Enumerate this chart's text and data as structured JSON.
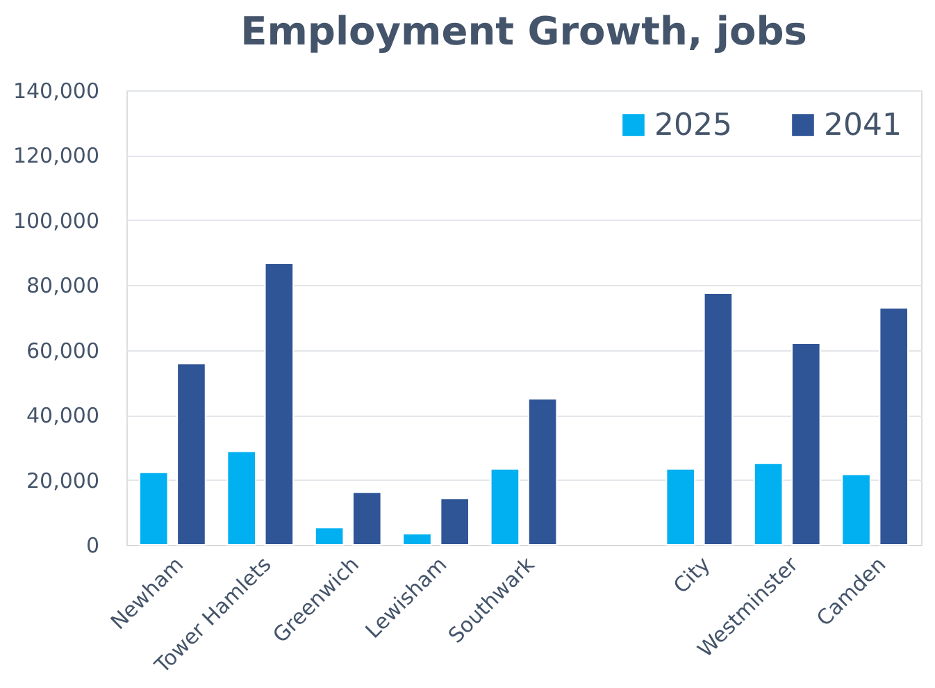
{
  "chart_data": {
    "type": "bar",
    "title": "Employment Growth, jobs",
    "categories": [
      "Newham",
      "Tower Hamlets",
      "Greenwich",
      "Lewisham",
      "Southwark",
      null,
      "City",
      "Westminster",
      "Camden"
    ],
    "series": [
      {
        "name": "2025",
        "color": "#00b0f0",
        "values": [
          22300,
          28800,
          5300,
          3400,
          23400,
          null,
          23400,
          25100,
          21700
        ]
      },
      {
        "name": "2041",
        "color": "#2f5597",
        "values": [
          55800,
          86700,
          16200,
          14300,
          45000,
          null,
          77500,
          62100,
          73000
        ]
      }
    ],
    "ylim": [
      0,
      140000
    ],
    "yticks": [
      0,
      {
        "value": 20000,
        "label": "20,000"
      },
      {
        "value": 40000,
        "label": "40,000"
      },
      {
        "value": 60000,
        "label": "60,000"
      },
      {
        "value": 80000,
        "label": "80,000"
      },
      {
        "value": 100000,
        "label": "100,000"
      },
      {
        "value": 120000,
        "label": "120,000"
      },
      {
        "value": 140000,
        "label": "140,000"
      }
    ],
    "grid": "y",
    "legend": "top right"
  }
}
